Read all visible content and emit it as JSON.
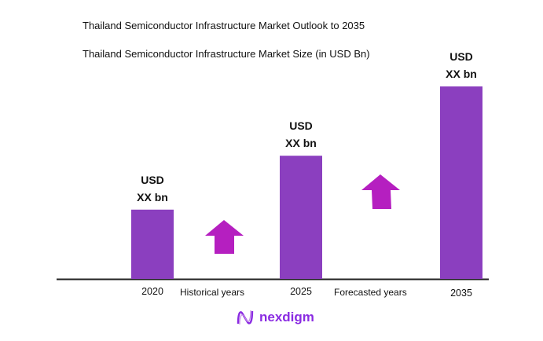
{
  "chart_data": {
    "type": "bar",
    "title": "Thailand Semiconductor Infrastructure Market Outlook to 2035",
    "subtitle": "Thailand Semiconductor Infrastructure Market Size (in USD Bn)",
    "categories": [
      "2020",
      "2025",
      "2035"
    ],
    "values_relative": [
      0.36,
      0.64,
      1.0
    ],
    "data_labels": [
      [
        "USD",
        "XX bn"
      ],
      [
        "USD",
        "XX bn"
      ],
      [
        "USD",
        "XX bn"
      ]
    ],
    "annotations": [
      "Historical years",
      "Forecasted years"
    ],
    "grid": false,
    "bar_color": "#8b3fbf",
    "arrow_color": "#b51fc0"
  },
  "logo": {
    "text": "nexdigm"
  }
}
